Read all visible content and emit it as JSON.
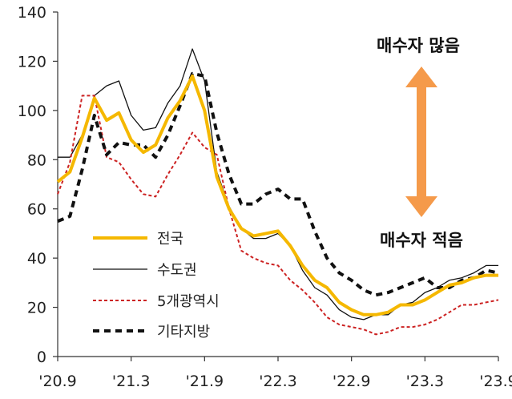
{
  "chart_data": {
    "type": "line",
    "title": "",
    "xlabel": "",
    "ylabel": "",
    "ylim": [
      0,
      140
    ],
    "y_ticks": [
      0,
      20,
      40,
      60,
      80,
      100,
      120,
      140
    ],
    "x_tick_labels": [
      "'20.9",
      "'21.3",
      "'21.9",
      "'22.3",
      "'22.9",
      "'23.3",
      "'23.9"
    ],
    "x": [
      0,
      1,
      2,
      3,
      4,
      5,
      6,
      7,
      8,
      9,
      10,
      11,
      12,
      13,
      14,
      15,
      16,
      17,
      18,
      19,
      20,
      21,
      22,
      23,
      24,
      25,
      26,
      27,
      28,
      29,
      30,
      31,
      32,
      33,
      34,
      35,
      36
    ],
    "series": [
      {
        "name": "전국",
        "color": "#F5B800",
        "dash": "solid",
        "width": 4,
        "values": [
          71,
          75,
          89,
          105,
          96,
          99,
          88,
          83,
          86,
          97,
          104,
          114,
          100,
          73,
          60,
          52,
          49,
          50,
          51,
          45,
          37,
          31,
          28,
          22,
          19,
          17,
          17,
          18,
          21,
          21,
          23,
          26,
          29,
          30,
          32,
          33,
          33
        ]
      },
      {
        "name": "수도권",
        "color": "#111111",
        "dash": "solid",
        "width": 1.3,
        "values": [
          81,
          81,
          90,
          106,
          110,
          112,
          98,
          92,
          93,
          103,
          110,
          125,
          112,
          75,
          61,
          52,
          48,
          48,
          50,
          45,
          35,
          28,
          25,
          19,
          16,
          15,
          17,
          17,
          21,
          22,
          26,
          28,
          31,
          32,
          34,
          37,
          37
        ]
      },
      {
        "name": "5개광역시",
        "color": "#CC2222",
        "dash": "4,3",
        "width": 2,
        "values": [
          66,
          79,
          106,
          106,
          81,
          79,
          72,
          66,
          65,
          74,
          82,
          91,
          85,
          82,
          60,
          43,
          40,
          38,
          37,
          31,
          27,
          22,
          16,
          13,
          12,
          11,
          9,
          10,
          12,
          12,
          13,
          15,
          18,
          21,
          21,
          22,
          23
        ]
      },
      {
        "name": "기타지방",
        "color": "#111111",
        "dash": "8,6",
        "width": 4,
        "values": [
          55,
          57,
          76,
          98,
          82,
          87,
          86,
          86,
          81,
          90,
          102,
          115,
          114,
          91,
          74,
          62,
          62,
          66,
          68,
          64,
          64,
          51,
          40,
          34,
          31,
          27,
          25,
          26,
          28,
          30,
          32,
          28,
          28,
          31,
          32,
          35,
          34
        ]
      }
    ],
    "legend_position": "bottom-left",
    "annotations": {
      "top": "매수자 많음",
      "bottom": "매수자 적음"
    },
    "arrow_color": "#F59A4A"
  }
}
